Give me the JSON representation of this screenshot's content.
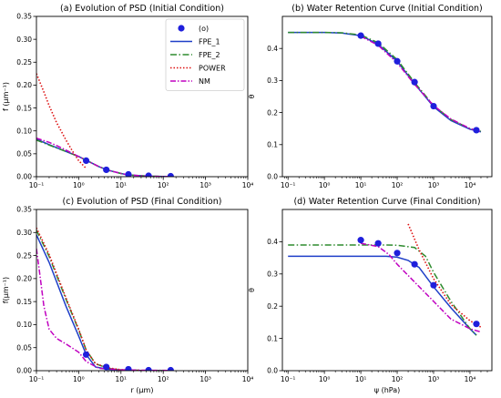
{
  "chart_data": [
    {
      "type": "line",
      "title": "(a) Evolution of PSD (Initial Condition)",
      "xlabel": "",
      "ylabel": "f (μm⁻¹)",
      "xscale": "log",
      "xlim": [
        0.1,
        10000
      ],
      "ylim": [
        0,
        0.35
      ],
      "xticks": [
        0.1,
        1,
        10,
        100,
        1000,
        10000
      ],
      "xtick_labels": [
        "10⁻¹",
        "10⁰",
        "10¹",
        "10²",
        "10³",
        "10⁴"
      ],
      "yticks": [
        0,
        0.05,
        0.1,
        0.15,
        0.2,
        0.25,
        0.3,
        0.35
      ],
      "ytick_labels": [
        "0.00",
        "0.05",
        "0.10",
        "0.15",
        "0.20",
        "0.25",
        "0.30",
        "0.35"
      ],
      "grid": false,
      "legend": "top-right",
      "series": [
        {
          "name": "(o)",
          "style": "markers",
          "color": "#1f1fdc",
          "x": [
            1.5,
            4.5,
            15,
            45,
            150
          ],
          "y": [
            0.035,
            0.015,
            0.005,
            0.002,
            0.001
          ]
        },
        {
          "name": "FPE_1",
          "style": "solid",
          "color": "#1f3fc8",
          "x": [
            0.1,
            0.2,
            0.5,
            1,
            1.5,
            3,
            5,
            10,
            15,
            30,
            50,
            100,
            150
          ],
          "y": [
            0.082,
            0.07,
            0.055,
            0.044,
            0.036,
            0.022,
            0.014,
            0.007,
            0.004,
            0.002,
            0.001,
            0.0005,
            0.0002
          ]
        },
        {
          "name": "FPE_2",
          "style": "dashdot",
          "color": "#2e8b2e",
          "x": [
            0.1,
            0.2,
            0.5,
            1,
            1.5,
            3,
            5,
            10,
            15,
            30,
            50,
            100,
            150
          ],
          "y": [
            0.08,
            0.069,
            0.055,
            0.044,
            0.036,
            0.022,
            0.014,
            0.007,
            0.004,
            0.002,
            0.001,
            0.0005,
            0.0002
          ]
        },
        {
          "name": "POWER",
          "style": "dotted",
          "color": "#dd1111",
          "x": [
            0.1,
            0.15,
            0.2,
            0.3,
            0.5,
            0.7,
            1,
            1.5
          ],
          "y": [
            0.225,
            0.185,
            0.155,
            0.118,
            0.08,
            0.057,
            0.035,
            0.018
          ]
        },
        {
          "name": "NM",
          "style": "dashdot2",
          "color": "#c000c0",
          "x": [
            0.1,
            0.2,
            0.3,
            0.5,
            1,
            1.5,
            3,
            5,
            10,
            15,
            30,
            50,
            100,
            150
          ],
          "y": [
            0.084,
            0.075,
            0.068,
            0.058,
            0.044,
            0.036,
            0.022,
            0.014,
            0.007,
            0.004,
            0.002,
            0.001,
            0.0005,
            0.0002
          ]
        }
      ]
    },
    {
      "type": "line",
      "title": "(b) Water Retention Curve (Initial Condition)",
      "xlabel": "",
      "ylabel": "θ",
      "xscale": "log",
      "xlim": [
        0.07,
        40000
      ],
      "ylim": [
        0,
        0.5
      ],
      "xticks": [
        0.1,
        1,
        10,
        100,
        1000,
        10000
      ],
      "xtick_labels": [
        "10⁻¹",
        "10⁰",
        "10¹",
        "10²",
        "10³",
        "10⁴"
      ],
      "yticks": [
        0,
        0.1,
        0.2,
        0.3,
        0.4
      ],
      "ytick_labels": [
        "0.0",
        "0.1",
        "0.2",
        "0.3",
        "0.4"
      ],
      "grid": false,
      "series": [
        {
          "name": "(o)",
          "style": "markers",
          "color": "#1f1fdc",
          "x": [
            10,
            30,
            100,
            300,
            1000,
            15000
          ],
          "y": [
            0.44,
            0.415,
            0.36,
            0.295,
            0.22,
            0.145
          ]
        },
        {
          "name": "FPE_1",
          "style": "solid",
          "color": "#1f3fc8",
          "x": [
            0.1,
            1,
            3,
            10,
            30,
            100,
            300,
            1000,
            3000,
            10000,
            20000
          ],
          "y": [
            0.45,
            0.45,
            0.448,
            0.44,
            0.413,
            0.36,
            0.29,
            0.218,
            0.175,
            0.148,
            0.14
          ]
        },
        {
          "name": "FPE_2",
          "style": "dashdot",
          "color": "#2e8b2e",
          "x": [
            0.1,
            1,
            3,
            10,
            30,
            100,
            300,
            1000,
            3000,
            10000,
            20000
          ],
          "y": [
            0.45,
            0.45,
            0.449,
            0.442,
            0.418,
            0.365,
            0.294,
            0.222,
            0.178,
            0.15,
            0.142
          ]
        },
        {
          "name": "NM",
          "style": "dashdot2",
          "color": "#c000c0",
          "x": [
            10,
            30,
            100,
            300,
            1000,
            3000,
            10000,
            20000
          ],
          "y": [
            0.438,
            0.41,
            0.355,
            0.288,
            0.222,
            0.18,
            0.15,
            0.14
          ]
        }
      ]
    },
    {
      "type": "line",
      "title": "(c) Evolution of PSD (Final Condition)",
      "xlabel": "r (μm)",
      "ylabel": "f(μm⁻¹)",
      "xscale": "log",
      "xlim": [
        0.1,
        10000
      ],
      "ylim": [
        0,
        0.35
      ],
      "xticks": [
        0.1,
        1,
        10,
        100,
        1000,
        10000
      ],
      "xtick_labels": [
        "10⁻¹",
        "10⁰",
        "10¹",
        "10²",
        "10³",
        "10⁴"
      ],
      "yticks": [
        0,
        0.05,
        0.1,
        0.15,
        0.2,
        0.25,
        0.3,
        0.35
      ],
      "ytick_labels": [
        "0.00",
        "0.05",
        "0.10",
        "0.15",
        "0.20",
        "0.25",
        "0.30",
        "0.35"
      ],
      "grid": false,
      "series": [
        {
          "name": "(o)",
          "style": "markers",
          "color": "#1f1fdc",
          "x": [
            1.5,
            4.5,
            15,
            45,
            150
          ],
          "y": [
            0.035,
            0.008,
            0.003,
            0.001,
            0.001
          ]
        },
        {
          "name": "FPE_1",
          "style": "solid",
          "color": "#1f3fc8",
          "x": [
            0.1,
            0.2,
            0.5,
            1,
            1.5,
            2.5,
            5,
            10,
            30,
            150
          ],
          "y": [
            0.295,
            0.235,
            0.14,
            0.075,
            0.035,
            0.008,
            0.003,
            0.001,
            0.0005,
            0.0002
          ]
        },
        {
          "name": "FPE_2",
          "style": "dashdot",
          "color": "#2e8b2e",
          "x": [
            0.1,
            0.2,
            0.5,
            1,
            1.5,
            2.5,
            5,
            10,
            30,
            150
          ],
          "y": [
            0.305,
            0.248,
            0.155,
            0.088,
            0.045,
            0.015,
            0.005,
            0.002,
            0.0005,
            0.0002
          ]
        },
        {
          "name": "POWER",
          "style": "dotted",
          "color": "#dd1111",
          "x": [
            0.1,
            0.2,
            0.5,
            1,
            1.5,
            2.5,
            5,
            10,
            30
          ],
          "y": [
            0.31,
            0.252,
            0.158,
            0.09,
            0.045,
            0.015,
            0.006,
            0.002,
            0.0005
          ]
        },
        {
          "name": "NM",
          "style": "dashdot2",
          "color": "#c000c0",
          "x": [
            0.1,
            0.12,
            0.15,
            0.2,
            0.3,
            0.5,
            1,
            1.5,
            3,
            10,
            30,
            150
          ],
          "y": [
            0.265,
            0.21,
            0.14,
            0.09,
            0.07,
            0.058,
            0.04,
            0.02,
            0.005,
            0.002,
            0.001,
            0.0005
          ]
        }
      ]
    },
    {
      "type": "line",
      "title": "(d) Water Retention Curve (Final Condition)",
      "xlabel": "ψ (hPa)",
      "ylabel": "θ",
      "xscale": "log",
      "xlim": [
        0.07,
        40000
      ],
      "ylim": [
        0,
        0.5
      ],
      "xticks": [
        0.1,
        1,
        10,
        100,
        1000,
        10000
      ],
      "xtick_labels": [
        "10⁻¹",
        "10⁰",
        "10¹",
        "10²",
        "10³",
        "10⁴"
      ],
      "yticks": [
        0,
        0.1,
        0.2,
        0.3,
        0.4
      ],
      "ytick_labels": [
        "0.0",
        "0.1",
        "0.2",
        "0.3",
        "0.4"
      ],
      "grid": false,
      "series": [
        {
          "name": "(o)",
          "style": "markers",
          "color": "#1f1fdc",
          "x": [
            10,
            30,
            100,
            300,
            1000,
            15000
          ],
          "y": [
            0.405,
            0.395,
            0.365,
            0.33,
            0.265,
            0.145
          ]
        },
        {
          "name": "FPE_1",
          "style": "solid",
          "color": "#1f3fc8",
          "x": [
            0.1,
            1,
            10,
            50,
            100,
            200,
            400,
            1000,
            3000,
            10000,
            15000
          ],
          "y": [
            0.355,
            0.355,
            0.355,
            0.355,
            0.352,
            0.342,
            0.32,
            0.26,
            0.195,
            0.13,
            0.11
          ]
        },
        {
          "name": "FPE_2",
          "style": "dashdot",
          "color": "#2e8b2e",
          "x": [
            0.1,
            1,
            10,
            50,
            100,
            300,
            600,
            1000,
            3000,
            10000,
            15000
          ],
          "y": [
            0.39,
            0.39,
            0.39,
            0.39,
            0.389,
            0.382,
            0.355,
            0.305,
            0.215,
            0.13,
            0.11
          ]
        },
        {
          "name": "POWER",
          "style": "dotted",
          "color": "#dd1111",
          "x": [
            200,
            400,
            1000,
            3000,
            10000,
            20000
          ],
          "y": [
            0.455,
            0.375,
            0.285,
            0.205,
            0.155,
            0.135
          ]
        },
        {
          "name": "NM",
          "style": "dashdot2",
          "color": "#c000c0",
          "x": [
            10,
            30,
            60,
            100,
            300,
            1000,
            3000,
            10000,
            20000
          ],
          "y": [
            0.395,
            0.385,
            0.36,
            0.33,
            0.275,
            0.215,
            0.16,
            0.13,
            0.12
          ]
        }
      ]
    }
  ]
}
